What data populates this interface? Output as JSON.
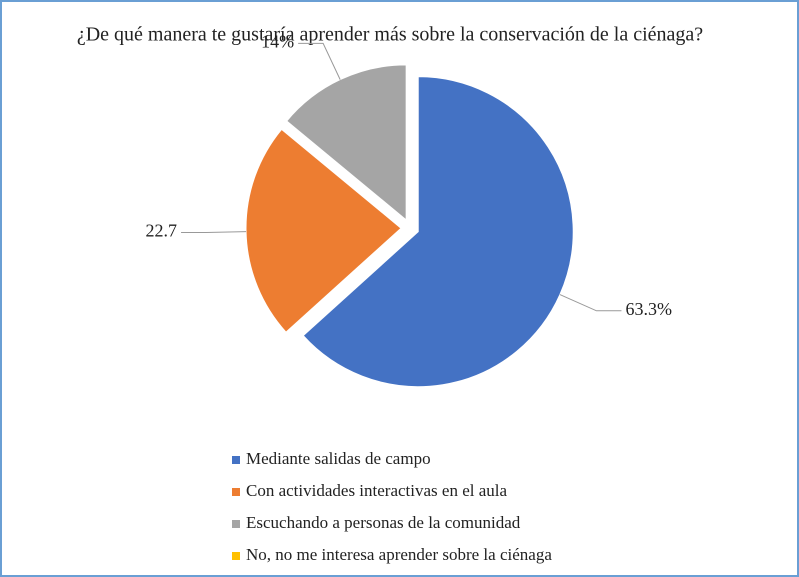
{
  "chart_data": {
    "type": "pie",
    "title": "¿De qué manera te gustaría aprender más sobre la conservación de la ciénaga?",
    "categories": [
      "Mediante salidas de campo",
      "Con actividades interactivas en el aula",
      "Escuchando a personas de la comunidad",
      "No, no me interesa aprender sobre la ciénaga"
    ],
    "values": [
      63.3,
      22.7,
      14,
      0
    ],
    "value_labels": [
      "63.3%",
      "22.7",
      "14%",
      null
    ],
    "colors": [
      "#4472c4",
      "#ed7d31",
      "#a5a5a5",
      "#ffc000"
    ],
    "legend": "bottom"
  }
}
